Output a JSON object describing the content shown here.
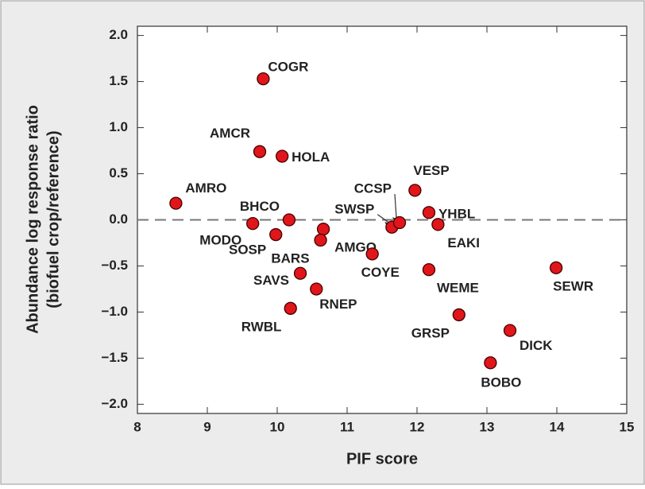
{
  "chart_data": {
    "type": "scatter",
    "xlabel": "PIF score",
    "ylabel": [
      "Abundance log response ratio",
      "(biofuel crop/reference)"
    ],
    "xlim": [
      8,
      15
    ],
    "ylim": [
      -2.1,
      2.1
    ],
    "xticks": [
      8,
      9,
      10,
      11,
      12,
      13,
      14,
      15
    ],
    "yticks": [
      {
        "value": 2,
        "label": "2.0"
      },
      {
        "value": 1.5,
        "label": "1.5"
      },
      {
        "value": 1,
        "label": "1.0"
      },
      {
        "value": 0.5,
        "label": "0.5"
      },
      {
        "value": 0,
        "label": "0.0"
      },
      {
        "value": -0.5,
        "label": "−0.5"
      },
      {
        "value": -1,
        "label": "−1.0"
      },
      {
        "value": -1.5,
        "label": "−1.5"
      },
      {
        "value": -2,
        "label": "−2.0"
      }
    ],
    "reference_line": 0,
    "color": "#e0161b",
    "series": [
      {
        "labels": [
          "COGR",
          "AMCR",
          "HOLA",
          "AMRO",
          "VESP",
          "BHCO",
          "MODO",
          "SOSP",
          "AMGO",
          "BARS",
          "SWSP",
          "CCSP",
          "YHBL",
          "EAKI",
          "COYE",
          "WEME",
          "SEWR",
          "SAVS",
          "RNEP",
          "RWBL",
          "GRSP",
          "DICK",
          "BOBO"
        ],
        "x": [
          9.8,
          9.75,
          10.07,
          8.55,
          11.97,
          10.17,
          9.65,
          9.98,
          10.66,
          10.62,
          11.64,
          11.75,
          12.17,
          12.3,
          11.36,
          12.17,
          13.99,
          10.33,
          10.56,
          10.19,
          12.6,
          13.33,
          13.05
        ],
        "values": [
          1.53,
          0.74,
          0.69,
          0.18,
          0.32,
          0.0,
          -0.04,
          -0.16,
          -0.1,
          -0.22,
          -0.08,
          -0.03,
          0.08,
          -0.05,
          -0.37,
          -0.54,
          -0.52,
          -0.58,
          -0.75,
          -0.96,
          -1.03,
          -1.2,
          -1.55
        ]
      }
    ]
  }
}
